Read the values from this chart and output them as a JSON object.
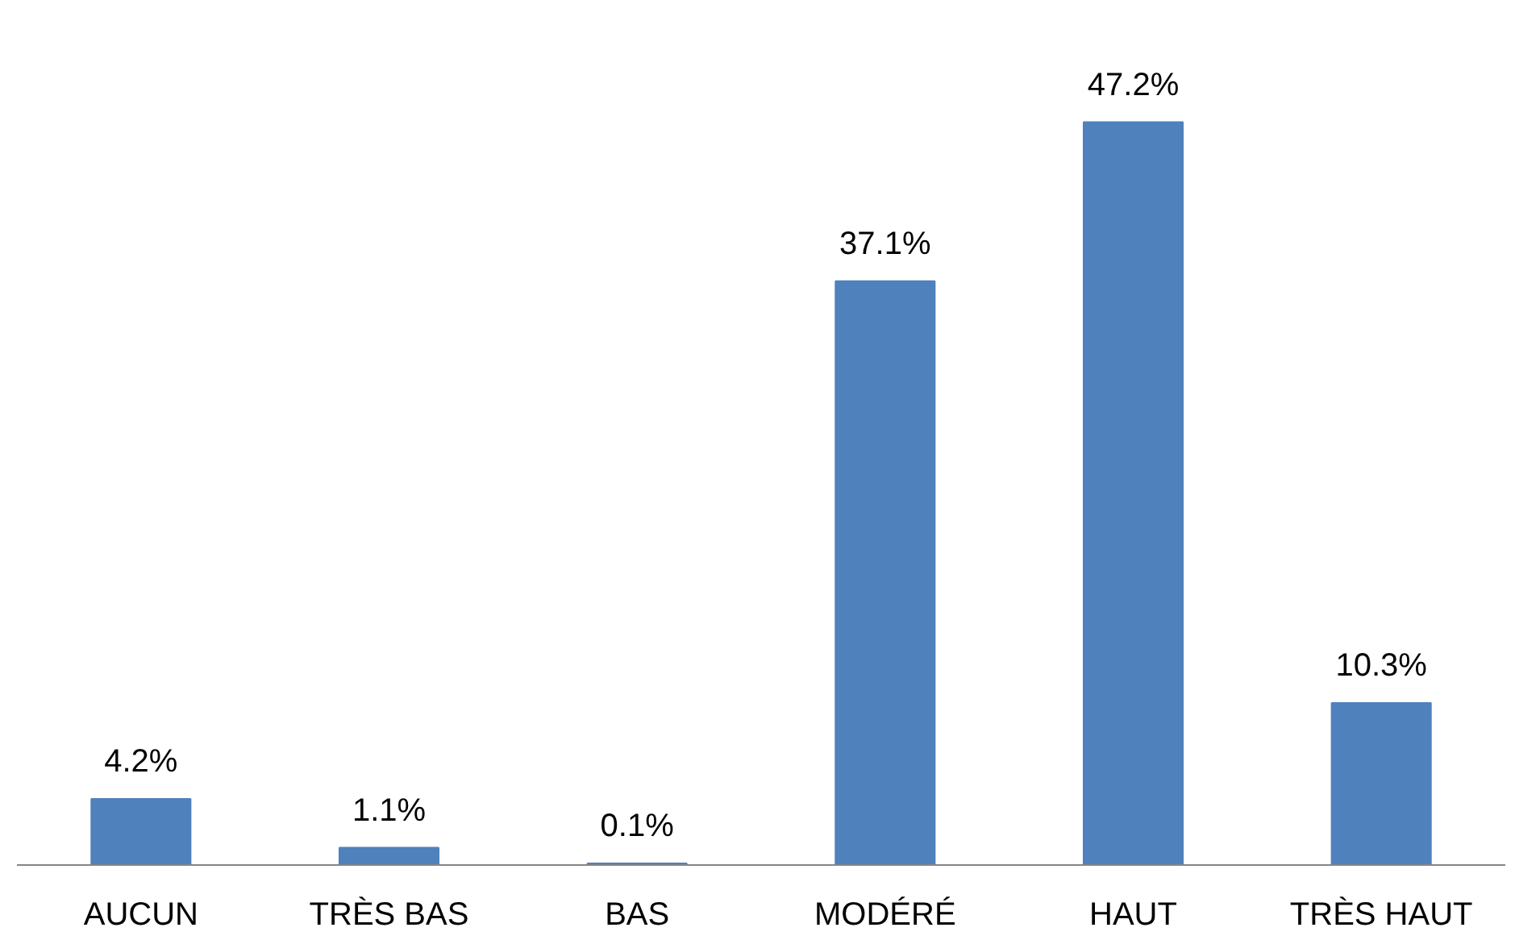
{
  "chart_data": {
    "type": "bar",
    "categories": [
      "AUCUN",
      "TRÈS BAS",
      "BAS",
      "MODÉRÉ",
      "HAUT",
      "TRÈS HAUT"
    ],
    "values": [
      4.2,
      1.1,
      0.1,
      37.1,
      47.2,
      10.3
    ],
    "value_labels": [
      "4.2%",
      "1.1%",
      "0.1%",
      "37.1%",
      "47.2%",
      "10.3%"
    ],
    "color": "#4f81bd",
    "grid": false
  }
}
